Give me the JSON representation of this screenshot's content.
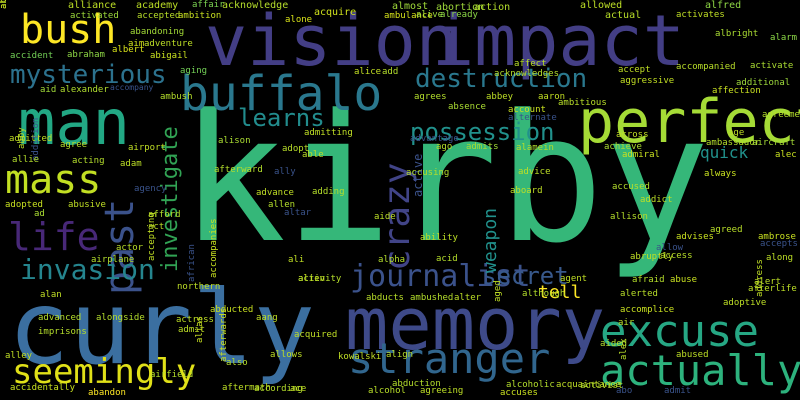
{
  "words": [
    {
      "text": "kirby",
      "color": "#35b779",
      "vertical": false
    },
    {
      "text": "curly",
      "color": "#3b6fa0",
      "vertical": false
    },
    {
      "text": "vision",
      "color": "#433e85",
      "vertical": false
    },
    {
      "text": "impact",
      "color": "#433e85",
      "vertical": false
    },
    {
      "text": "man",
      "color": "#22a884",
      "vertical": false
    },
    {
      "text": "memory",
      "color": "#3e4a89",
      "vertical": false
    },
    {
      "text": "perfect",
      "color": "#a5db36",
      "vertical": false
    },
    {
      "text": "buffalo",
      "color": "#2a788e",
      "vertical": false
    },
    {
      "text": "stranger",
      "color": "#31668e",
      "vertical": false
    },
    {
      "text": "excuse",
      "color": "#26a784",
      "vertical": false
    },
    {
      "text": "actually",
      "color": "#2db27d",
      "vertical": false
    },
    {
      "text": "seemingly",
      "color": "#e0e018",
      "vertical": false
    },
    {
      "text": "mass",
      "color": "#c2df23",
      "vertical": false
    },
    {
      "text": "life",
      "color": "#482878",
      "vertical": false
    },
    {
      "text": "bush",
      "color": "#fde725",
      "vertical": false
    },
    {
      "text": "crazy",
      "color": "#414487",
      "vertical": true
    },
    {
      "text": "past",
      "color": "#3b528b",
      "vertical": true
    },
    {
      "text": "mysterious",
      "color": "#2c728e",
      "vertical": false
    },
    {
      "text": "destruction",
      "color": "#2a788e",
      "vertical": false
    },
    {
      "text": "invasion",
      "color": "#25858e",
      "vertical": false
    },
    {
      "text": "journalist",
      "color": "#3b528b",
      "vertical": false
    },
    {
      "text": "possession",
      "color": "#21918c",
      "vertical": false
    },
    {
      "text": "learns",
      "color": "#228c8d",
      "vertical": false
    },
    {
      "text": "secret",
      "color": "#38598c",
      "vertical": false
    },
    {
      "text": "investigate",
      "color": "#31a354",
      "vertical": true
    },
    {
      "text": "weapon",
      "color": "#21918c",
      "vertical": true
    },
    {
      "text": "active",
      "color": "#3b528b",
      "vertical": true
    },
    {
      "text": "tell",
      "color": "#fde725",
      "vertical": false
    },
    {
      "text": "quick",
      "color": "#21918c",
      "vertical": false
    },
    {
      "text": "alliance",
      "color": "#bddf26",
      "vertical": false
    },
    {
      "text": "academy",
      "color": "#bddf26",
      "vertical": false
    },
    {
      "text": "affair",
      "color": "#7ad151",
      "vertical": false
    },
    {
      "text": "acknowledge",
      "color": "#b5de2b",
      "vertical": false
    },
    {
      "text": "acquire",
      "color": "#cfe11c",
      "vertical": false
    },
    {
      "text": "almost",
      "color": "#a0da39",
      "vertical": false
    },
    {
      "text": "abortion",
      "color": "#9fda3a",
      "vertical": false
    },
    {
      "text": "action",
      "color": "#b4de2c",
      "vertical": false
    },
    {
      "text": "allowed",
      "color": "#bddf26",
      "vertical": false
    },
    {
      "text": "alfred",
      "color": "#8ed645",
      "vertical": false
    },
    {
      "text": "activated",
      "color": "#9dd93b",
      "vertical": false
    },
    {
      "text": "accepted",
      "color": "#b8de29",
      "vertical": false
    },
    {
      "text": "ambition",
      "color": "#c8e020",
      "vertical": false
    },
    {
      "text": "alone",
      "color": "#d8e219",
      "vertical": false
    },
    {
      "text": "ambulance",
      "color": "#d5e21a",
      "vertical": false
    },
    {
      "text": "alive",
      "color": "#9bd93c",
      "vertical": false
    },
    {
      "text": "already",
      "color": "#8bd646",
      "vertical": false
    },
    {
      "text": "actual",
      "color": "#b8de29",
      "vertical": false
    },
    {
      "text": "activates",
      "color": "#c0df25",
      "vertical": false
    },
    {
      "text": "albright",
      "color": "#aadc32",
      "vertical": false
    },
    {
      "text": "alarm",
      "color": "#8bd646",
      "vertical": false
    },
    {
      "text": "accident",
      "color": "#73d056",
      "vertical": false
    },
    {
      "text": "abraham",
      "color": "#8ed645",
      "vertical": false
    },
    {
      "text": "abandoning",
      "color": "#a2da37",
      "vertical": false
    },
    {
      "text": "albert",
      "color": "#d8e219",
      "vertical": false
    },
    {
      "text": "aim",
      "color": "#d0e11c",
      "vertical": false
    },
    {
      "text": "adventure",
      "color": "#bddf26",
      "vertical": false
    },
    {
      "text": "abigail",
      "color": "#c8e020",
      "vertical": false
    },
    {
      "text": "aid",
      "color": "#a0da39",
      "vertical": false
    },
    {
      "text": "alexander",
      "color": "#b0dd2f",
      "vertical": false
    },
    {
      "text": "accompany",
      "color": "#3a538b",
      "vertical": false
    },
    {
      "text": "ambush",
      "color": "#b5de2b",
      "vertical": false
    },
    {
      "text": "aging",
      "color": "#73d056",
      "vertical": false
    },
    {
      "text": "alice",
      "color": "#c2df23",
      "vertical": false
    },
    {
      "text": "add",
      "color": "#b4de2c",
      "vertical": false
    },
    {
      "text": "accept",
      "color": "#c0df25",
      "vertical": false
    },
    {
      "text": "accompanied",
      "color": "#b8de29",
      "vertical": false
    },
    {
      "text": "activate",
      "color": "#aadc32",
      "vertical": false
    },
    {
      "text": "aggressive",
      "color": "#c2df23",
      "vertical": false
    },
    {
      "text": "additional",
      "color": "#9dd93b",
      "vertical": false
    },
    {
      "text": "affection",
      "color": "#c8e020",
      "vertical": false
    },
    {
      "text": "aaron",
      "color": "#c2df23",
      "vertical": false
    },
    {
      "text": "ambitious",
      "color": "#b8de29",
      "vertical": false
    },
    {
      "text": "agrees",
      "color": "#b4de2c",
      "vertical": false
    },
    {
      "text": "abbey",
      "color": "#bddf26",
      "vertical": false
    },
    {
      "text": "absence",
      "color": "#aadc32",
      "vertical": false
    },
    {
      "text": "account",
      "color": "#c8e020",
      "vertical": false
    },
    {
      "text": "alternate",
      "color": "#3a538b",
      "vertical": false
    },
    {
      "text": "advantage",
      "color": "#3a538b",
      "vertical": false
    },
    {
      "text": "ago",
      "color": "#b5de2b",
      "vertical": false
    },
    {
      "text": "admits",
      "color": "#a5db36",
      "vertical": false
    },
    {
      "text": "alamein",
      "color": "#b4de2c",
      "vertical": false
    },
    {
      "text": "achieve",
      "color": "#aadc32",
      "vertical": false
    },
    {
      "text": "across",
      "color": "#c0df25",
      "vertical": false
    },
    {
      "text": "ambassador",
      "color": "#b4de2c",
      "vertical": false
    },
    {
      "text": "admiral",
      "color": "#c8e020",
      "vertical": false
    },
    {
      "text": "aircraft",
      "color": "#a5db36",
      "vertical": false
    },
    {
      "text": "agreement",
      "color": "#b5de2b",
      "vertical": false
    },
    {
      "text": "alec",
      "color": "#c8e020",
      "vertical": false
    },
    {
      "text": "age",
      "color": "#bddf26",
      "vertical": false
    },
    {
      "text": "admitted",
      "color": "#c2df23",
      "vertical": false
    },
    {
      "text": "addition",
      "color": "#3a538b",
      "vertical": true
    },
    {
      "text": "abby",
      "color": "#b8de29",
      "vertical": true
    },
    {
      "text": "agree",
      "color": "#b5de2b",
      "vertical": false
    },
    {
      "text": "airport",
      "color": "#c0df25",
      "vertical": false
    },
    {
      "text": "allie",
      "color": "#b4de2c",
      "vertical": false
    },
    {
      "text": "acting",
      "color": "#b4de2c",
      "vertical": false
    },
    {
      "text": "adam",
      "color": "#bddf26",
      "vertical": false
    },
    {
      "text": "alison",
      "color": "#aadc32",
      "vertical": false
    },
    {
      "text": "admitting",
      "color": "#c0df25",
      "vertical": false
    },
    {
      "text": "adopt",
      "color": "#b8de29",
      "vertical": false
    },
    {
      "text": "able",
      "color": "#bddf26",
      "vertical": false
    },
    {
      "text": "afterward",
      "color": "#b4de2c",
      "vertical": false
    },
    {
      "text": "ally",
      "color": "#3a538b",
      "vertical": false
    },
    {
      "text": "accusing",
      "color": "#b5de2b",
      "vertical": false
    },
    {
      "text": "advice",
      "color": "#bddf26",
      "vertical": false
    },
    {
      "text": "always",
      "color": "#c8e020",
      "vertical": false
    },
    {
      "text": "agency",
      "color": "#3a538b",
      "vertical": false
    },
    {
      "text": "advance",
      "color": "#c0df25",
      "vertical": false
    },
    {
      "text": "adding",
      "color": "#b5de2b",
      "vertical": false
    },
    {
      "text": "accused",
      "color": "#b4de2c",
      "vertical": false
    },
    {
      "text": "addict",
      "color": "#bddf26",
      "vertical": false
    },
    {
      "text": "adopted",
      "color": "#c8e020",
      "vertical": false
    },
    {
      "text": "ad",
      "color": "#aadc32",
      "vertical": false
    },
    {
      "text": "abusive",
      "color": "#c0df25",
      "vertical": false
    },
    {
      "text": "allen",
      "color": "#b4de2c",
      "vertical": false
    },
    {
      "text": "advises",
      "color": "#c8e020",
      "vertical": false
    },
    {
      "text": "agreed",
      "color": "#b8de29",
      "vertical": false
    },
    {
      "text": "afford",
      "color": "#b4de2c",
      "vertical": false
    },
    {
      "text": "act",
      "color": "#bddf26",
      "vertical": false
    },
    {
      "text": "altar",
      "color": "#3a538b",
      "vertical": false
    },
    {
      "text": "aide",
      "color": "#bddf26",
      "vertical": false
    },
    {
      "text": "aboard",
      "color": "#c0df25",
      "vertical": false
    },
    {
      "text": "allison",
      "color": "#b5de2b",
      "vertical": false
    },
    {
      "text": "allow",
      "color": "#3a538b",
      "vertical": false
    },
    {
      "text": "accepts",
      "color": "#3a538b",
      "vertical": false
    },
    {
      "text": "along",
      "color": "#bddf26",
      "vertical": false
    },
    {
      "text": "ambrose",
      "color": "#c8e020",
      "vertical": false
    },
    {
      "text": "actor",
      "color": "#b8de29",
      "vertical": false
    },
    {
      "text": "ali",
      "color": "#c0df25",
      "vertical": false
    },
    {
      "text": "alpha",
      "color": "#b4de2c",
      "vertical": false
    },
    {
      "text": "ability",
      "color": "#bddf26",
      "vertical": false
    },
    {
      "text": "acid",
      "color": "#b5de2b",
      "vertical": false
    },
    {
      "text": "accepting",
      "color": "#c0df25",
      "vertical": true
    },
    {
      "text": "accompanies",
      "color": "#c8e020",
      "vertical": true
    },
    {
      "text": "access",
      "color": "#b8de29",
      "vertical": false
    },
    {
      "text": "alert",
      "color": "#bddf26",
      "vertical": false
    },
    {
      "text": "abruptly",
      "color": "#c0df25",
      "vertical": false
    },
    {
      "text": "airplane",
      "color": "#b4de2c",
      "vertical": false
    },
    {
      "text": "northern",
      "color": "#bddf26",
      "vertical": false
    },
    {
      "text": "alien",
      "color": "#c8e020",
      "vertical": false
    },
    {
      "text": "activity",
      "color": "#b5de2b",
      "vertical": false
    },
    {
      "text": "aged",
      "color": "#c0df25",
      "vertical": true
    },
    {
      "text": "abducts",
      "color": "#b8de29",
      "vertical": false
    },
    {
      "text": "ambushed",
      "color": "#b4de2c",
      "vertical": false
    },
    {
      "text": "alter",
      "color": "#bddf26",
      "vertical": false
    },
    {
      "text": "agent",
      "color": "#c0df25",
      "vertical": false
    },
    {
      "text": "afraid",
      "color": "#b5de2b",
      "vertical": false
    },
    {
      "text": "abuse",
      "color": "#c8e020",
      "vertical": false
    },
    {
      "text": "afterlife",
      "color": "#bddf26",
      "vertical": false
    },
    {
      "text": "alan",
      "color": "#c0df25",
      "vertical": false
    },
    {
      "text": "although",
      "color": "#b4de2c",
      "vertical": false
    },
    {
      "text": "alerted",
      "color": "#b8de29",
      "vertical": false
    },
    {
      "text": "address",
      "color": "#c0df25",
      "vertical": true
    },
    {
      "text": "adoptive",
      "color": "#bddf26",
      "vertical": false
    },
    {
      "text": "abducted",
      "color": "#c8e020",
      "vertical": false
    },
    {
      "text": "advanced",
      "color": "#b5de2b",
      "vertical": false
    },
    {
      "text": "alongside",
      "color": "#b4de2c",
      "vertical": false
    },
    {
      "text": "actress",
      "color": "#bddf26",
      "vertical": false
    },
    {
      "text": "aang",
      "color": "#c0df25",
      "vertical": false
    },
    {
      "text": "accomplice",
      "color": "#c8e020",
      "vertical": false
    },
    {
      "text": "air",
      "color": "#b8de29",
      "vertical": false
    },
    {
      "text": "imprisons",
      "color": "#b5de2b",
      "vertical": false
    },
    {
      "text": "admit",
      "color": "#bddf26",
      "vertical": false
    },
    {
      "text": "acquired",
      "color": "#c0df25",
      "vertical": false
    },
    {
      "text": "aided",
      "color": "#b4de2c",
      "vertical": false
    },
    {
      "text": "alias",
      "color": "#c8e020",
      "vertical": true
    },
    {
      "text": "alex",
      "color": "#b8de29",
      "vertical": true
    },
    {
      "text": "abused",
      "color": "#bddf26",
      "vertical": false
    },
    {
      "text": "alley",
      "color": "#c0df25",
      "vertical": false
    },
    {
      "text": "airfield",
      "color": "#b5de2b",
      "vertical": false
    },
    {
      "text": "also",
      "color": "#b4de2c",
      "vertical": false
    },
    {
      "text": "afterwards",
      "color": "#c8e020",
      "vertical": true
    },
    {
      "text": "allows",
      "color": "#bddf26",
      "vertical": false
    },
    {
      "text": "kowalski",
      "color": "#c0df25",
      "vertical": false
    },
    {
      "text": "align",
      "color": "#b8de29",
      "vertical": false
    },
    {
      "text": "alcoholic",
      "color": "#b4de2c",
      "vertical": false
    },
    {
      "text": "accidentally",
      "color": "#c8e020",
      "vertical": false
    },
    {
      "text": "abandon",
      "color": "#fde725",
      "vertical": false
    },
    {
      "text": "aftermath",
      "color": "#bddf26",
      "vertical": false
    },
    {
      "text": "according",
      "color": "#b5de2b",
      "vertical": false
    },
    {
      "text": "ace",
      "color": "#c0df25",
      "vertical": false
    },
    {
      "text": "alcohol",
      "color": "#b8de29",
      "vertical": false
    },
    {
      "text": "abduction",
      "color": "#b4de2c",
      "vertical": false
    },
    {
      "text": "agreeing",
      "color": "#bddf26",
      "vertical": false
    },
    {
      "text": "accuses",
      "color": "#c8e020",
      "vertical": false
    },
    {
      "text": "acquaintance",
      "color": "#c0df25",
      "vertical": false
    },
    {
      "text": "activist",
      "color": "#b5de2b",
      "vertical": false
    },
    {
      "text": "abo",
      "color": "#3a538b",
      "vertical": false
    },
    {
      "text": "admit",
      "color": "#3a538b",
      "vertical": false
    },
    {
      "text": "affect",
      "color": "#b8de29",
      "vertical": false
    },
    {
      "text": "acknowledges",
      "color": "#b4de2c",
      "vertical": false
    },
    {
      "text": "african",
      "color": "#3a538b",
      "vertical": true
    },
    {
      "text": "abandoned",
      "color": "#c0df25",
      "vertical": true
    },
    {
      "text": "al",
      "color": "#c8e020",
      "vertical": true
    }
  ]
}
